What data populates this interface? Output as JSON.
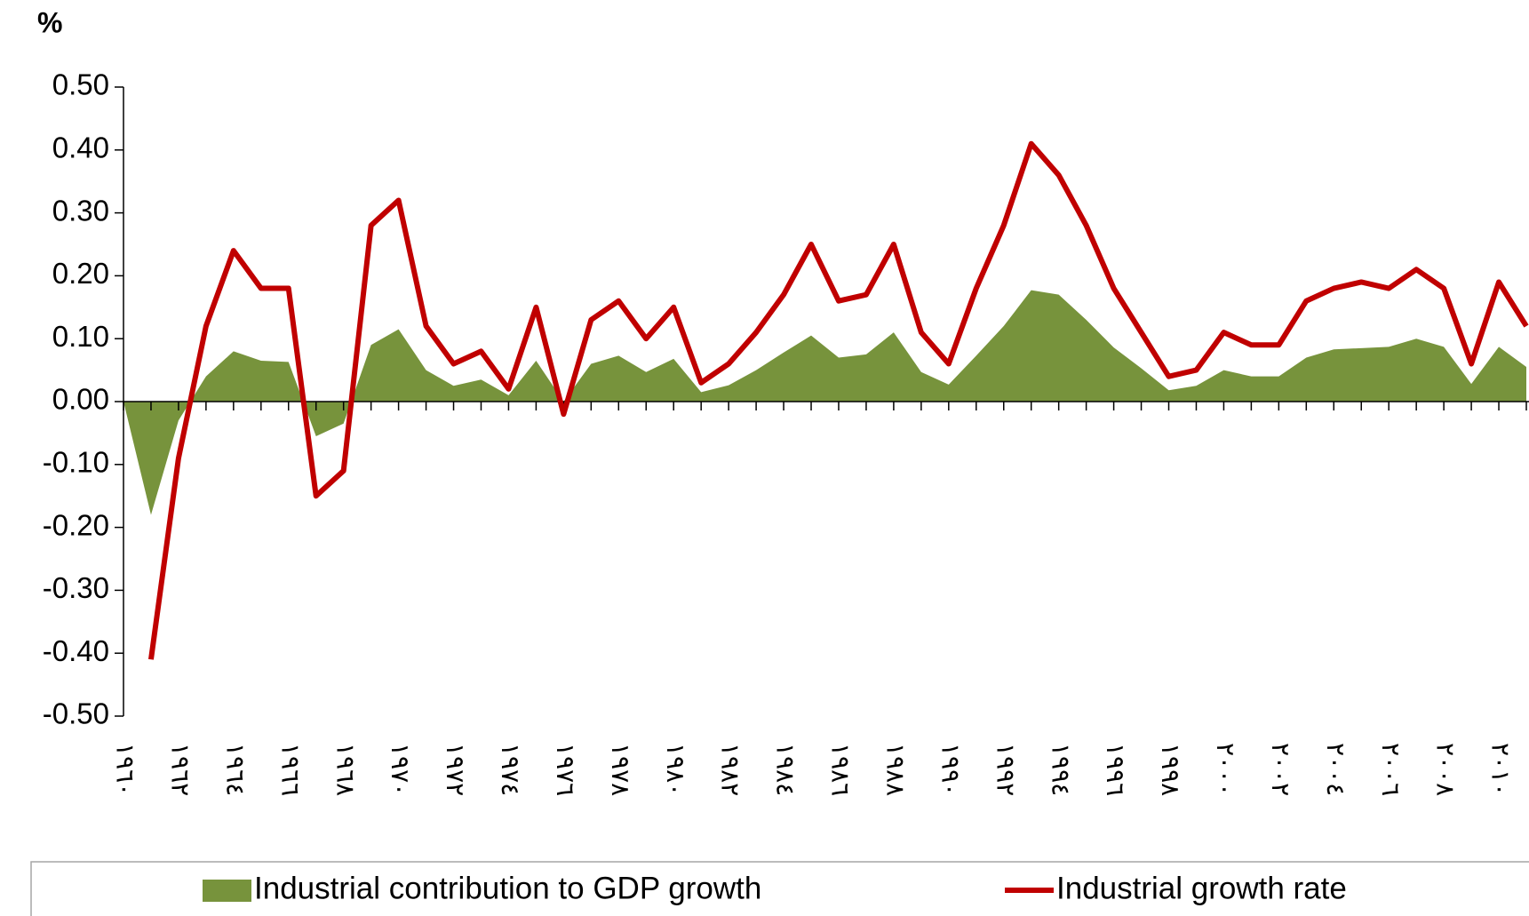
{
  "chart_data": {
    "type": "line",
    "title": "%",
    "categories": [
      "١٩٦٠",
      null,
      "١٩٦٢",
      null,
      "١٩٦٤",
      null,
      "١٩٦٦",
      null,
      "١٩٦٨",
      null,
      "١٩٧٠",
      null,
      "١٩٧٢",
      null,
      "١٩٧٤",
      null,
      "١٩٧٦",
      null,
      "١٩٧٨",
      null,
      "١٩٨٠",
      null,
      "١٩٨٢",
      null,
      "١٩٨٤",
      null,
      "١٩٨٦",
      null,
      "١٩٨٨",
      null,
      "١٩٩٠",
      null,
      "١٩٩٢",
      null,
      "١٩٩٤",
      null,
      "١٩٩٦",
      null,
      "١٩٩٨",
      null,
      "٢٠٠٠",
      null,
      "٢٠٠٢",
      null,
      "٢٠٠٤",
      null,
      "٢٠٠٦",
      null,
      "٢٠٠٨",
      null,
      "٢٠١٠",
      null
    ],
    "series": [
      {
        "name": "Industrial contribution to GDP growth",
        "color": "#77933c",
        "kind": "area",
        "values": [
          0,
          -0.18,
          -0.03,
          0.04,
          0.08,
          0.065,
          0.063,
          -0.055,
          -0.035,
          0.09,
          0.115,
          0.05,
          0.025,
          0.035,
          0.01,
          0.065,
          0.0,
          0.06,
          0.073,
          0.047,
          0.068,
          0.015,
          0.026,
          0.05,
          0.078,
          0.105,
          0.07,
          0.075,
          0.11,
          0.047,
          0.027,
          0.073,
          0.12,
          0.177,
          0.17,
          0.13,
          0.086,
          0.053,
          0.018,
          0.025,
          0.05,
          0.04,
          0.04,
          0.07,
          0.083,
          0.085,
          0.087,
          0.1,
          0.087,
          0.028,
          0.087,
          0.055
        ]
      },
      {
        "name": "Industrial growth rate",
        "color": "#c00000",
        "kind": "line",
        "values": [
          null,
          -0.41,
          -0.09,
          0.12,
          0.24,
          0.18,
          0.18,
          -0.15,
          -0.11,
          0.28,
          0.32,
          0.12,
          0.06,
          0.08,
          0.02,
          0.15,
          -0.02,
          0.13,
          0.16,
          0.1,
          0.15,
          0.03,
          0.06,
          0.11,
          0.17,
          0.25,
          0.16,
          0.17,
          0.25,
          0.11,
          0.06,
          0.18,
          0.28,
          0.41,
          0.36,
          0.28,
          0.18,
          0.11,
          0.04,
          0.05,
          0.11,
          0.09,
          0.09,
          0.16,
          0.18,
          0.19,
          0.18,
          0.21,
          0.18,
          0.06,
          0.19,
          0.12
        ]
      }
    ],
    "ylim": [
      -0.5,
      0.5
    ],
    "yticks": [
      {
        "value": -0.5,
        "label": "-0.50"
      },
      {
        "value": -0.4,
        "label": "-0.40"
      },
      {
        "value": -0.3,
        "label": "-0.30"
      },
      {
        "value": -0.2,
        "label": "-0.20"
      },
      {
        "value": -0.1,
        "label": "-0.10"
      },
      {
        "value": 0,
        "label": "0.00"
      },
      {
        "value": 0.1,
        "label": "0.10"
      },
      {
        "value": 0.2,
        "label": "0.20"
      },
      {
        "value": 0.3,
        "label": "0.30"
      },
      {
        "value": 0.4,
        "label": "0.40"
      },
      {
        "value": 0.5,
        "label": "0.50"
      }
    ],
    "grid": false,
    "legend": "bottom"
  }
}
